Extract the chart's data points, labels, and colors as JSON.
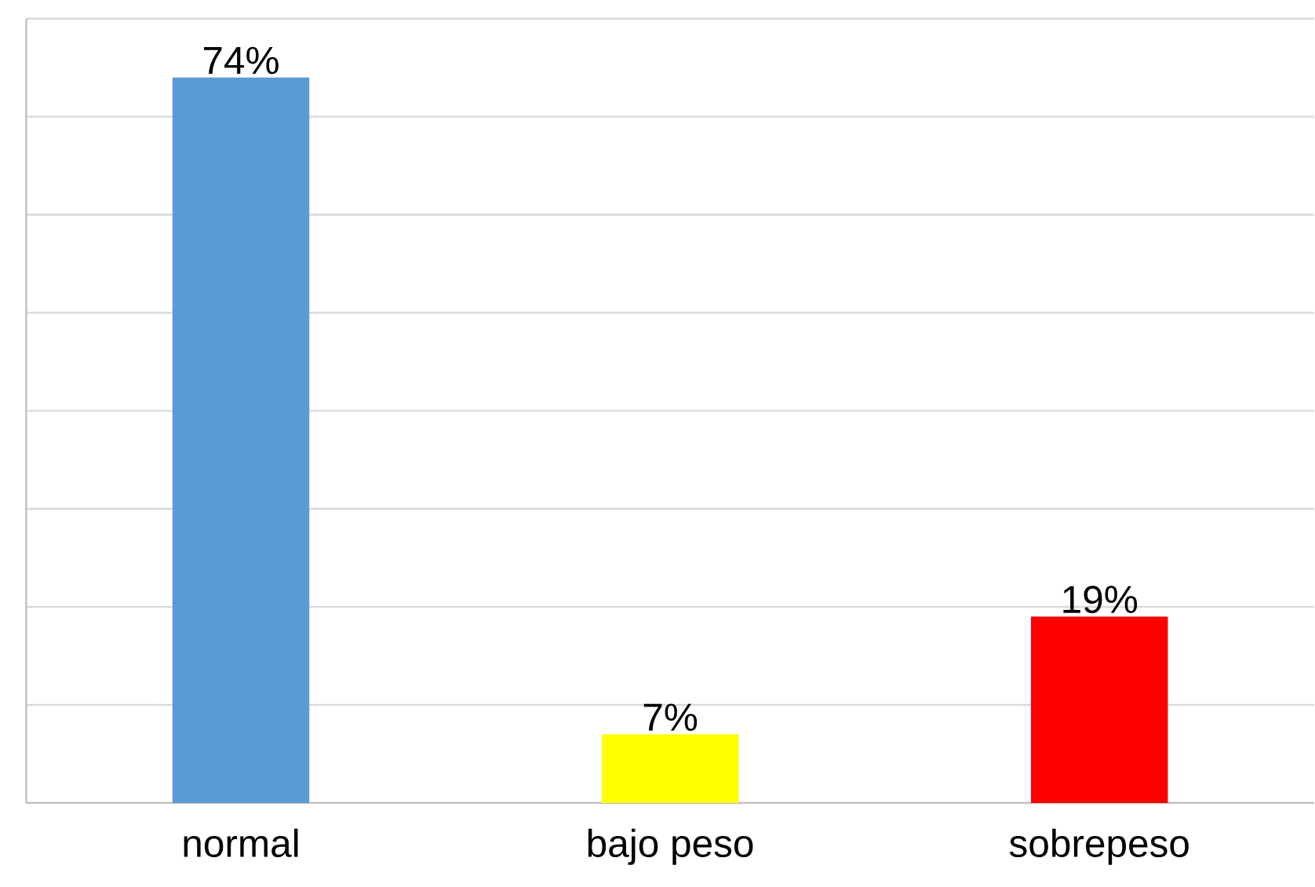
{
  "chart_data": {
    "type": "bar",
    "categories": [
      "normal",
      "bajo peso",
      "sobrepeso"
    ],
    "values": [
      74,
      7,
      19
    ],
    "value_labels": [
      "74%",
      "7%",
      "19%"
    ],
    "colors": [
      "#5b9bd5",
      "#ffff00",
      "#ff0000"
    ],
    "ylim": [
      0,
      80
    ],
    "yticks": [
      {
        "value": 0,
        "label": null
      },
      {
        "value": 10,
        "label": null
      },
      {
        "value": 20,
        "label": null
      },
      {
        "value": 30,
        "label": null
      },
      {
        "value": 40,
        "label": null
      },
      {
        "value": 50,
        "label": null
      },
      {
        "value": 60,
        "label": null
      },
      {
        "value": 70,
        "label": null
      },
      {
        "value": 80,
        "label": null
      }
    ],
    "grid": "y",
    "tick_labels": "x"
  }
}
